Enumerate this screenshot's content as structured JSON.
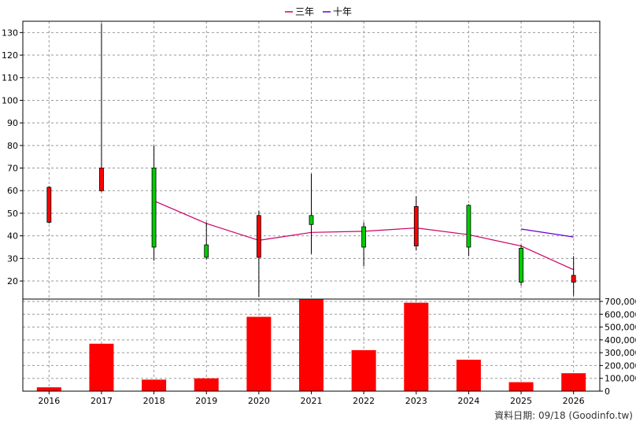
{
  "legend": [
    {
      "label": "三年",
      "color": "#cc0066"
    },
    {
      "label": "十年",
      "color": "#6600cc"
    }
  ],
  "source": "資料日期: 09/18 (Goodinfo.tw)",
  "chart_data": [
    {
      "type": "candlestick",
      "categories": [
        "2016",
        "2017",
        "2018",
        "2019",
        "2020",
        "2021",
        "2022",
        "2023",
        "2024",
        "2025",
        "2026"
      ],
      "ylim": [
        12,
        135
      ],
      "yticks": [
        20,
        30,
        40,
        50,
        60,
        70,
        80,
        90,
        100,
        110,
        120,
        130
      ],
      "grid": true,
      "candles": [
        {
          "open": 46,
          "close": 61.5,
          "high": 62,
          "low": 45.5,
          "color": "#ff0000"
        },
        {
          "open": 60,
          "close": 70,
          "high": 134,
          "low": 59.5,
          "color": "#ff0000"
        },
        {
          "open": 70,
          "close": 35,
          "high": 80,
          "low": 29,
          "color": "#00cc00"
        },
        {
          "open": 36,
          "close": 30.5,
          "high": 46,
          "low": 29.5,
          "color": "#00cc00"
        },
        {
          "open": 30.5,
          "close": 49,
          "high": 51,
          "low": 13,
          "color": "#ff0000"
        },
        {
          "open": 49,
          "close": 45,
          "high": 67.5,
          "low": 32,
          "color": "#00cc00"
        },
        {
          "open": 44,
          "close": 35,
          "high": 46,
          "low": 26.5,
          "color": "#00cc00"
        },
        {
          "open": 35.5,
          "close": 53,
          "high": 57.5,
          "low": 33.5,
          "color": "#ff0000"
        },
        {
          "open": 53.5,
          "close": 35,
          "high": 54,
          "low": 31,
          "color": "#00cc00"
        },
        {
          "open": 34.5,
          "close": 19.5,
          "high": 36,
          "low": 18,
          "color": "#00cc00"
        },
        {
          "open": 19.5,
          "close": 22.5,
          "high": 31,
          "low": 13.5,
          "color": "#ff0000"
        }
      ],
      "series": [
        {
          "name": "三年",
          "color": "#cc0066",
          "values": [
            null,
            null,
            55.5,
            45.5,
            38,
            41.5,
            42,
            43.5,
            40.5,
            35.5,
            25
          ]
        },
        {
          "name": "十年",
          "color": "#6600cc",
          "values": [
            null,
            null,
            null,
            null,
            null,
            null,
            null,
            null,
            null,
            43,
            39.5
          ]
        }
      ]
    },
    {
      "type": "bar",
      "categories": [
        "2016",
        "2017",
        "2018",
        "2019",
        "2020",
        "2021",
        "2022",
        "2023",
        "2024",
        "2025",
        "2026"
      ],
      "values": [
        30000,
        370000,
        90000,
        100000,
        580000,
        715000,
        320000,
        690000,
        245000,
        70000,
        140000
      ],
      "ylim": [
        0,
        700000
      ],
      "yticks": [
        0,
        100000,
        200000,
        300000,
        400000,
        500000,
        600000,
        700000
      ],
      "ytick_labels": [
        "0",
        "100,000",
        "200,000",
        "300,000",
        "400,000",
        "500,000",
        "600,000",
        "700,000"
      ],
      "bar_color": "#ff0000",
      "grid": true
    }
  ]
}
